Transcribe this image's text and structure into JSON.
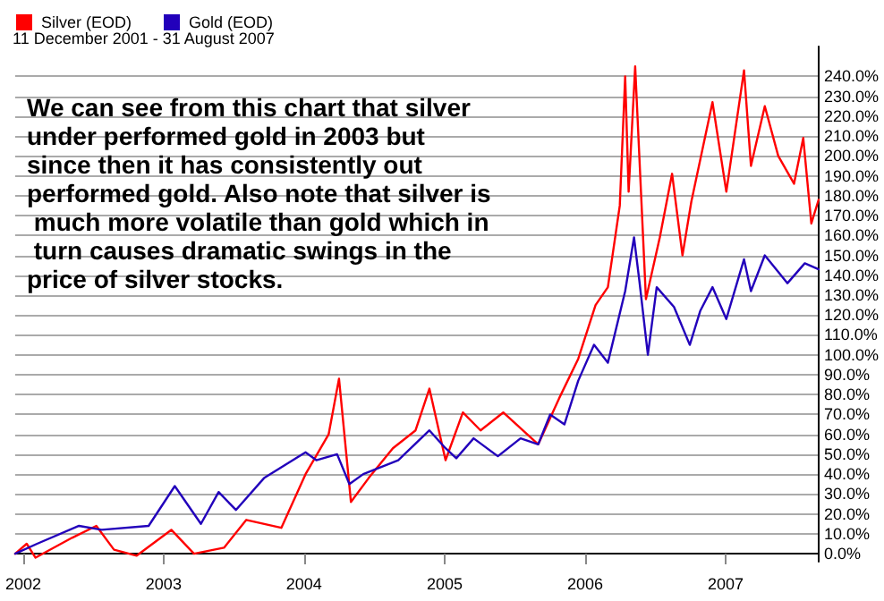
{
  "chart_data": {
    "type": "line",
    "subtitle": "11 December 2001 - 31 August 2007",
    "annotations": [
      "We can see from this chart that silver under performed gold in 2003 but since then it has consistently out performed gold. Also note that silver is much more volatile than gold which in turn causes dramatic swings in the price of silver stocks."
    ],
    "series": [
      {
        "name": "Silver (EOD)",
        "color": "#ff0000",
        "x": [
          "2001-12-11",
          "2002-01-10",
          "2002-02-02",
          "2002-05-08",
          "2002-07-10",
          "2002-08-25",
          "2002-10-23",
          "2003-01-21",
          "2003-03-21",
          "2003-06-07",
          "2003-08-04",
          "2003-11-03",
          "2004-01-05",
          "2004-03-05",
          "2004-04-01",
          "2004-05-02",
          "2004-06-17",
          "2004-08-19",
          "2004-10-17",
          "2004-11-22",
          "2005-01-03",
          "2005-02-17",
          "2005-04-04",
          "2005-06-02",
          "2005-09-01",
          "2005-10-25",
          "2005-12-14",
          "2006-01-28",
          "2006-03-01",
          "2006-04-01",
          "2006-04-15",
          "2006-04-24",
          "2006-05-11",
          "2006-06-08",
          "2006-07-14",
          "2006-08-15",
          "2006-09-11",
          "2006-10-04",
          "2006-11-28",
          "2007-01-03",
          "2007-02-18",
          "2007-03-08",
          "2007-04-13",
          "2007-05-18",
          "2007-06-28",
          "2007-07-22",
          "2007-08-12",
          "2007-08-31"
        ],
        "values": [
          0,
          5,
          -2,
          8,
          14,
          2,
          -1,
          12,
          0,
          3,
          17,
          13,
          40,
          60,
          88,
          26,
          38,
          53,
          62,
          83,
          47,
          71,
          62,
          71,
          55,
          78,
          98,
          125,
          134,
          175,
          240,
          182,
          245,
          128,
          159,
          191,
          150,
          177,
          227,
          182,
          243,
          195,
          225,
          200,
          186,
          209,
          166,
          178
        ]
      },
      {
        "name": "Gold (EOD)",
        "color": "#2200bb",
        "x": [
          "2001-12-11",
          "2002-02-06",
          "2002-05-26",
          "2002-07-24",
          "2002-11-23",
          "2003-01-30",
          "2003-04-08",
          "2003-05-24",
          "2003-07-08",
          "2003-09-19",
          "2004-01-05",
          "2004-02-02",
          "2004-03-27",
          "2004-04-28",
          "2004-06-03",
          "2004-09-02",
          "2004-11-22",
          "2005-01-03",
          "2005-01-31",
          "2005-03-17",
          "2005-05-19",
          "2005-07-17",
          "2005-09-01",
          "2005-10-02",
          "2005-11-08",
          "2005-12-14",
          "2006-01-24",
          "2006-03-01",
          "2006-04-15",
          "2006-05-08",
          "2006-05-22",
          "2006-06-13",
          "2006-07-06",
          "2006-08-20",
          "2006-09-30",
          "2006-10-27",
          "2006-11-28",
          "2007-01-03",
          "2007-02-18",
          "2007-03-08",
          "2007-04-13",
          "2007-06-11",
          "2007-07-26",
          "2007-08-31"
        ],
        "values": [
          0,
          5,
          14,
          12,
          14,
          34,
          15,
          31,
          22,
          38,
          51,
          47,
          50,
          35,
          40,
          47,
          62,
          53,
          48,
          58,
          49,
          58,
          55,
          70,
          65,
          87,
          105,
          96,
          132,
          159,
          137,
          100,
          134,
          124,
          105,
          122,
          134,
          118,
          148,
          132,
          150,
          136,
          146,
          143
        ]
      }
    ],
    "xlim": [
      "2001-12-11",
      "2007-08-31"
    ],
    "xticks": [
      "2002",
      "2003",
      "2004",
      "2005",
      "2006",
      "2007"
    ],
    "ylim": [
      -4,
      255
    ],
    "yticks": [
      {
        "value": 0,
        "label": "0.0%"
      },
      {
        "value": 10,
        "label": "10.0%"
      },
      {
        "value": 20,
        "label": "20.0%"
      },
      {
        "value": 30,
        "label": "30.0%"
      },
      {
        "value": 40,
        "label": "40.0%"
      },
      {
        "value": 50,
        "label": "50.0%"
      },
      {
        "value": 60,
        "label": "60.0%"
      },
      {
        "value": 70,
        "label": "70.0%"
      },
      {
        "value": 80,
        "label": "80.0%"
      },
      {
        "value": 90,
        "label": "90.0%"
      },
      {
        "value": 100,
        "label": "100.0%"
      },
      {
        "value": 110,
        "label": "110.0%"
      },
      {
        "value": 120,
        "label": "120.0%"
      },
      {
        "value": 130,
        "label": "130.0%"
      },
      {
        "value": 140,
        "label": "140.0%"
      },
      {
        "value": 150,
        "label": "150.0%"
      },
      {
        "value": 160,
        "label": "160.0%"
      },
      {
        "value": 170,
        "label": "170.0%"
      },
      {
        "value": 180,
        "label": "180.0%"
      },
      {
        "value": 190,
        "label": "190.0%"
      },
      {
        "value": 200,
        "label": "200.0%"
      },
      {
        "value": 210,
        "label": "210.0%"
      },
      {
        "value": 220,
        "label": "220.0%"
      },
      {
        "value": 230,
        "label": "230.0%"
      },
      {
        "value": 240,
        "label": "240.0%"
      }
    ],
    "grid": "y",
    "legend": "top left",
    "marker": "none",
    "line_style": "solid"
  }
}
